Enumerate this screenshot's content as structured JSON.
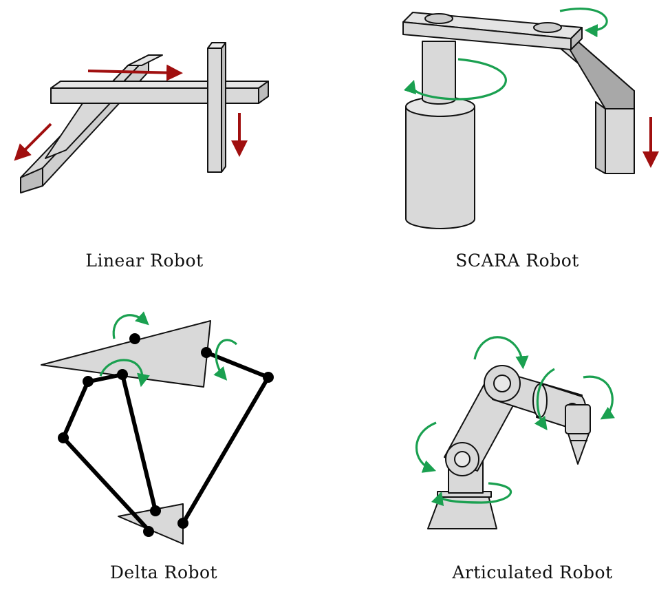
{
  "captions": {
    "linear": "Linear Robot",
    "scara": "SCARA Robot",
    "delta": "Delta Robot",
    "articulated": "Articulated Robot"
  },
  "colors": {
    "part_fill": "#d9d9d9",
    "part_shade": "#bdbdbd",
    "outline": "#111111",
    "translation_arrow": "#a00f0f",
    "rotation_arrow": "#1aa050",
    "delta_link": "#000000"
  }
}
